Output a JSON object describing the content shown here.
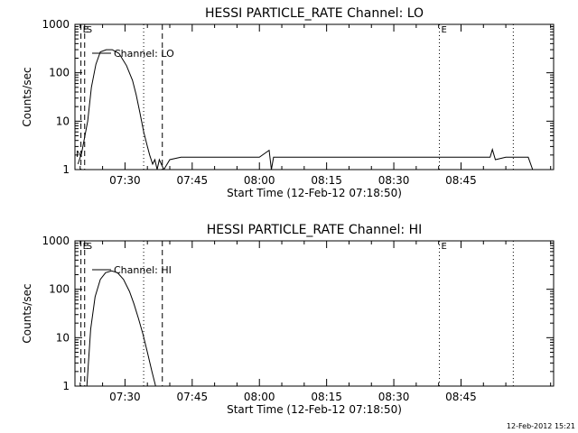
{
  "footer_timestamp": "12-Feb-2012 15:21",
  "chart_data": [
    {
      "type": "line",
      "title": "HESSI PARTICLE_RATE Channel: LO",
      "xlabel": "Start Time (12-Feb-12 07:18:50)",
      "ylabel": "Counts/sec",
      "log_y": true,
      "ylim": [
        1,
        1000
      ],
      "xlim": [
        "07:18:50",
        "09:05:40"
      ],
      "x_ticks": [
        "07:30",
        "07:45",
        "08:00",
        "08:15",
        "08:30",
        "08:45"
      ],
      "y_ticks": [
        "1",
        "10",
        "100",
        "1000"
      ],
      "legend": "Channel: LO",
      "series": [
        {
          "name": "Channel: LO",
          "x": [
            "07:19:30",
            "07:20:20",
            "07:21:40",
            "07:22:30",
            "07:23:30",
            "07:24:30",
            "07:25:50",
            "07:27:10",
            "07:28:40",
            "07:30:20",
            "07:31:40",
            "07:32:30",
            "07:33:20",
            "07:34:10",
            "07:35:00",
            "07:35:30",
            "07:36:10",
            "07:36:40",
            "07:37:10",
            "07:37:40",
            "07:38:40",
            "07:40:00",
            "07:42:30",
            "07:45:00",
            "07:50:00",
            "07:55:00",
            "08:00:00",
            "08:02:10",
            "08:02:40",
            "08:03:10",
            "08:05:00",
            "08:10:00",
            "08:15:00",
            "08:20:00",
            "08:25:00",
            "08:30:00",
            "08:35:00",
            "08:40:00",
            "08:45:00",
            "08:50:00",
            "08:51:30",
            "08:52:00",
            "08:52:40",
            "08:55:00",
            "08:58:00",
            "09:00:00",
            "09:01:00"
          ],
          "y": [
            1.3,
            2.2,
            10,
            50,
            150,
            270,
            300,
            300,
            250,
            140,
            70,
            35,
            15,
            6,
            3,
            2,
            1.3,
            1.6,
            1,
            1.6,
            1,
            1.6,
            1.8,
            1.8,
            1.8,
            1.8,
            1.8,
            2.5,
            1,
            1.8,
            1.8,
            1.8,
            1.8,
            1.8,
            1.8,
            1.8,
            1.8,
            1.8,
            1.8,
            1.8,
            1.8,
            2.6,
            1.6,
            1.8,
            1.8,
            1.8,
            1
          ]
        }
      ],
      "markers": [
        {
          "time": "07:20:10",
          "style": "dashed",
          "label": "E"
        },
        {
          "time": "07:21:00",
          "style": "dashed",
          "label": "S"
        },
        {
          "time": "07:34:10",
          "style": "dotted",
          "label": ""
        },
        {
          "time": "07:38:20",
          "style": "dashed",
          "label": ""
        },
        {
          "time": "08:40:10",
          "style": "dotted",
          "label": "E"
        },
        {
          "time": "08:56:40",
          "style": "dotted",
          "label": ""
        }
      ],
      "panel_marks": [
        "N"
      ]
    },
    {
      "type": "line",
      "title": "HESSI PARTICLE_RATE Channel: HI",
      "xlabel": "Start Time (12-Feb-12 07:18:50)",
      "ylabel": "Counts/sec",
      "log_y": true,
      "ylim": [
        1,
        1000
      ],
      "xlim": [
        "07:18:50",
        "09:05:40"
      ],
      "x_ticks": [
        "07:30",
        "07:45",
        "08:00",
        "08:15",
        "08:30",
        "08:45"
      ],
      "y_ticks": [
        "1",
        "10",
        "100",
        "1000"
      ],
      "legend": "Channel: HI",
      "series": [
        {
          "name": "Channel: HI",
          "x": [
            "07:21:30",
            "07:22:20",
            "07:23:20",
            "07:24:30",
            "07:25:40",
            "07:27:00",
            "07:28:20",
            "07:29:40",
            "07:31:00",
            "07:32:00",
            "07:33:00",
            "07:34:00",
            "07:35:00",
            "07:36:00",
            "07:36:50"
          ],
          "y": [
            1,
            15,
            70,
            160,
            220,
            240,
            220,
            160,
            90,
            50,
            25,
            12,
            5,
            2,
            1
          ]
        }
      ],
      "markers": [
        {
          "time": "07:20:10",
          "style": "dashed",
          "label": "E"
        },
        {
          "time": "07:21:00",
          "style": "dashed",
          "label": "S"
        },
        {
          "time": "07:34:10",
          "style": "dotted",
          "label": ""
        },
        {
          "time": "07:38:20",
          "style": "dashed",
          "label": ""
        },
        {
          "time": "08:40:10",
          "style": "dotted",
          "label": "E"
        },
        {
          "time": "08:56:40",
          "style": "dotted",
          "label": ""
        }
      ],
      "panel_marks": []
    }
  ]
}
